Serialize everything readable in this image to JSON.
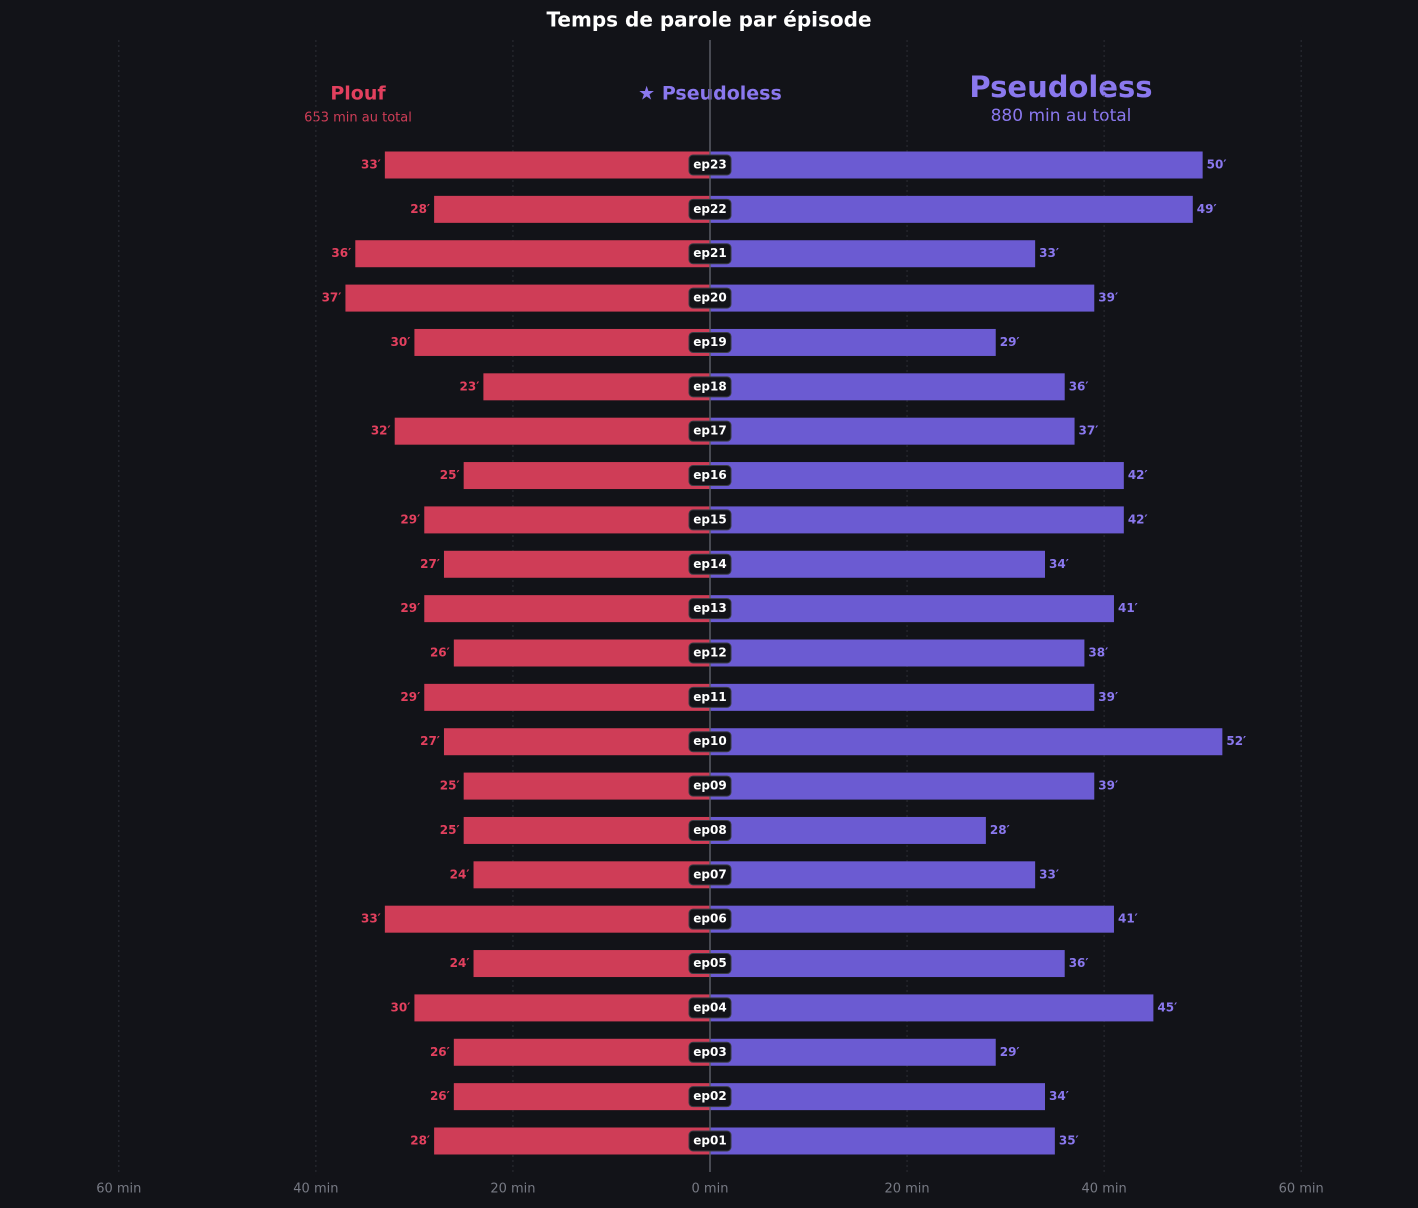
{
  "chart_data": {
    "type": "diverging_bar",
    "title": "Temps de parole par épisode",
    "highlight": "★  Pseudoless",
    "categories": [
      "ep23",
      "ep22",
      "ep21",
      "ep20",
      "ep19",
      "ep18",
      "ep17",
      "ep16",
      "ep15",
      "ep14",
      "ep13",
      "ep12",
      "ep11",
      "ep10",
      "ep09",
      "ep08",
      "ep07",
      "ep06",
      "ep05",
      "ep04",
      "ep03",
      "ep02",
      "ep01"
    ],
    "series": [
      {
        "name": "Plouf",
        "side": "left",
        "color": "#cf3d57",
        "total_label": "653 min au total",
        "values": [
          33,
          28,
          36,
          37,
          30,
          23,
          32,
          25,
          29,
          27,
          29,
          26,
          29,
          27,
          25,
          25,
          24,
          33,
          24,
          30,
          26,
          26,
          28
        ],
        "value_labels": [
          "33′",
          "28′",
          "36′",
          "37′",
          "30′",
          "23′",
          "32′",
          "25′",
          "29′",
          "27′",
          "29′",
          "26′",
          "29′",
          "27′",
          "25′",
          "25′",
          "24′",
          "33′",
          "24′",
          "30′",
          "26′",
          "26′",
          "28′"
        ]
      },
      {
        "name": "Pseudoless",
        "side": "right",
        "color": "#6b5bd2",
        "total_label": "880 min au total",
        "values": [
          50,
          49,
          33,
          39,
          29,
          36,
          37,
          42,
          42,
          34,
          41,
          38,
          39,
          52,
          39,
          28,
          33,
          41,
          36,
          45,
          29,
          34,
          35
        ],
        "value_labels": [
          "50′",
          "49′",
          "33′",
          "39′",
          "29′",
          "36′",
          "37′",
          "42′",
          "42′",
          "34′",
          "41′",
          "38′",
          "39′",
          "52′",
          "39′",
          "28′",
          "33′",
          "41′",
          "36′",
          "45′",
          "29′",
          "34′",
          "35′"
        ]
      }
    ],
    "xlim": [
      -68,
      68
    ],
    "xticks": [
      {
        "value": -60,
        "label": "60 min"
      },
      {
        "value": -40,
        "label": "40 min"
      },
      {
        "value": -20,
        "label": "20 min"
      },
      {
        "value": 0,
        "label": "0 min"
      },
      {
        "value": 20,
        "label": "20 min"
      },
      {
        "value": 40,
        "label": "40 min"
      },
      {
        "value": 60,
        "label": "60 min"
      }
    ],
    "grid": true
  }
}
